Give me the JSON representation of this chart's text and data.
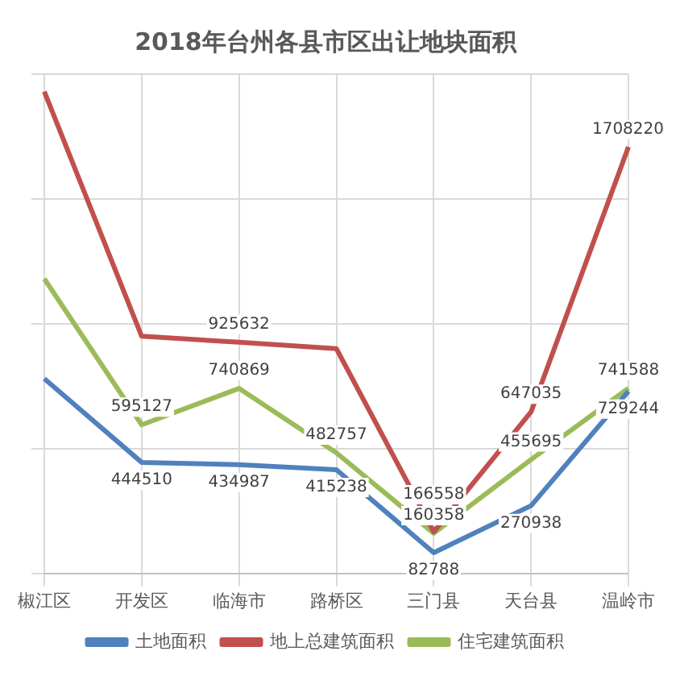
{
  "chart_data": {
    "type": "line",
    "title": "2018年台州各县市区出让地块面积",
    "categories": [
      "椒江区",
      "开发区",
      "临海市",
      "路桥区",
      "三门县",
      "天台县",
      "温岭市"
    ],
    "series": [
      {
        "name": "土地面积",
        "color": "#4f81bd",
        "values": [
          780000,
          444510,
          434987,
          415238,
          82788,
          270938,
          729244
        ],
        "value_labels": [
          null,
          "444510",
          "434987",
          "415238",
          "82788",
          "270938",
          "729244"
        ]
      },
      {
        "name": "地上总建筑面积",
        "color": "#c0504d",
        "values": [
          1930000,
          950000,
          925632,
          900000,
          166558,
          647035,
          1708220
        ],
        "value_labels": [
          null,
          null,
          "925632",
          null,
          "166558",
          "647035",
          "1708220"
        ]
      },
      {
        "name": "住宅建筑面积",
        "color": "#9bbb59",
        "values": [
          1180000,
          595127,
          740869,
          482757,
          160358,
          455695,
          741588
        ],
        "value_labels": [
          null,
          "595127",
          "740869",
          "482757",
          "160358",
          "455695",
          "741588"
        ]
      }
    ],
    "ylim": [
      0,
      2000000
    ],
    "yticks": [
      {
        "value": 0,
        "label": null
      },
      {
        "value": 500000,
        "label": null
      },
      {
        "value": 1000000,
        "label": null
      },
      {
        "value": 1500000,
        "label": null
      },
      {
        "value": 2000000,
        "label": null
      }
    ],
    "tick_labels": "x",
    "grid": true,
    "legend": "bottom",
    "marker": "none",
    "line_style": "solid"
  }
}
